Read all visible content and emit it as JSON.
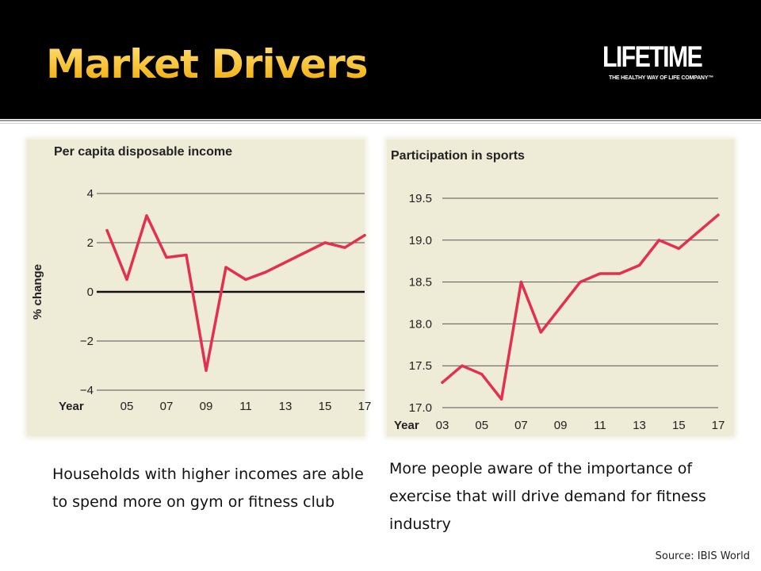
{
  "slide": {
    "title": "Market Drivers",
    "logo_word": "LIFETIME",
    "logo_tagline": "THE HEALTHY WAY OF LIFE COMPANY™",
    "caption_left": "Households with higher incomes are able to spend more on gym or fitness club",
    "caption_right": "More people aware of the importance of  exercise that will drive demand for fitness industry",
    "source": "Source: IBIS World"
  },
  "colors": {
    "line": "#e3304f",
    "panel": "#eeebd6",
    "title": "#f5c53a"
  },
  "chart_data": [
    {
      "type": "line",
      "title": "Per capita disposable income",
      "xlabel": "Year",
      "ylabel": "% change",
      "xlim": [
        2004,
        2017
      ],
      "ylim": [
        -4,
        4
      ],
      "yticks": [
        4,
        2,
        0,
        -2,
        -4
      ],
      "ytick_labels": [
        "4",
        "2",
        "0",
        "−2",
        "−4"
      ],
      "xticks": [
        2005,
        2007,
        2009,
        2011,
        2013,
        2015,
        2017
      ],
      "xtick_labels": [
        "05",
        "07",
        "09",
        "11",
        "13",
        "15",
        "17"
      ],
      "grid": true,
      "series": [
        {
          "x": [
            2004,
            2005,
            2006,
            2007,
            2008,
            2009,
            2010,
            2011,
            2012,
            2013,
            2014,
            2015,
            2016,
            2017
          ],
          "values": [
            2.5,
            0.5,
            3.1,
            1.4,
            1.5,
            -3.2,
            1.0,
            0.5,
            0.8,
            1.2,
            1.6,
            2.0,
            1.8,
            2.3
          ]
        }
      ]
    },
    {
      "type": "line",
      "title": "Participation in sports",
      "xlabel": "Year",
      "ylabel": "",
      "xlim": [
        2003,
        2017
      ],
      "ylim": [
        17.0,
        19.5
      ],
      "yticks": [
        19.5,
        19.0,
        18.5,
        18.0,
        17.5,
        17.0
      ],
      "ytick_labels": [
        "19.5",
        "19.0",
        "18.5",
        "18.0",
        "17.5",
        "17.0"
      ],
      "xticks": [
        2003,
        2005,
        2007,
        2009,
        2011,
        2013,
        2015,
        2017
      ],
      "xtick_labels": [
        "03",
        "05",
        "07",
        "09",
        "11",
        "13",
        "15",
        "17"
      ],
      "grid": true,
      "series": [
        {
          "x": [
            2003,
            2004,
            2005,
            2006,
            2007,
            2008,
            2009,
            2010,
            2011,
            2012,
            2013,
            2014,
            2015,
            2016,
            2017
          ],
          "values": [
            17.3,
            17.5,
            17.4,
            17.1,
            18.5,
            17.9,
            18.2,
            18.5,
            18.6,
            18.6,
            18.7,
            19.0,
            18.9,
            19.1,
            19.3
          ]
        }
      ]
    }
  ]
}
